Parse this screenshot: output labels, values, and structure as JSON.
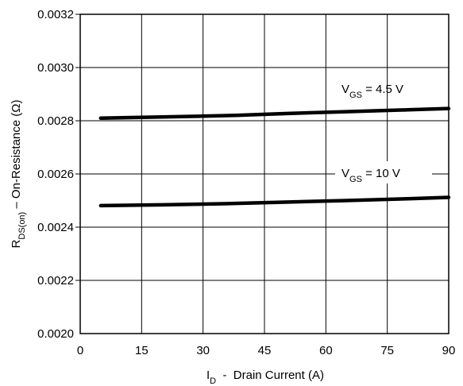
{
  "chart_data": {
    "type": "line",
    "title": "",
    "xlabel": {
      "main": "I",
      "sub": "D",
      "rest": "  -  Drain Current (A)"
    },
    "ylabel": {
      "main": "R",
      "sub": "DS(on)",
      "rest": " – On-Resistance (Ω)"
    },
    "xlim": [
      0,
      90
    ],
    "ylim": [
      0.002,
      0.0032
    ],
    "xticks": [
      0,
      15,
      30,
      45,
      60,
      75,
      90
    ],
    "xtick_labels": [
      "0",
      "15",
      "30",
      "45",
      "60",
      "75",
      "90"
    ],
    "yticks": [
      0.002,
      0.0022,
      0.0024,
      0.0026,
      0.0028,
      0.003,
      0.0032
    ],
    "ytick_labels": [
      "0.0020",
      "0.0022",
      "0.0024",
      "0.0026",
      "0.0028",
      "0.0030",
      "0.0032"
    ],
    "grid": true,
    "legend": "none",
    "series": [
      {
        "label": {
          "main": "V",
          "sub": "GS",
          "rest": " = 4.5 V"
        },
        "x": [
          5,
          20,
          38,
          50,
          65,
          80,
          90
        ],
        "y": [
          0.00281,
          0.002814,
          0.00282,
          0.002827,
          0.002834,
          0.002841,
          0.002846
        ]
      },
      {
        "label": {
          "main": "V",
          "sub": "GS",
          "rest": " = 10 V"
        },
        "x": [
          5,
          20,
          35,
          50,
          65,
          80,
          90
        ],
        "y": [
          0.002481,
          0.002484,
          0.002488,
          0.002494,
          0.0025,
          0.002507,
          0.002512
        ]
      }
    ]
  }
}
